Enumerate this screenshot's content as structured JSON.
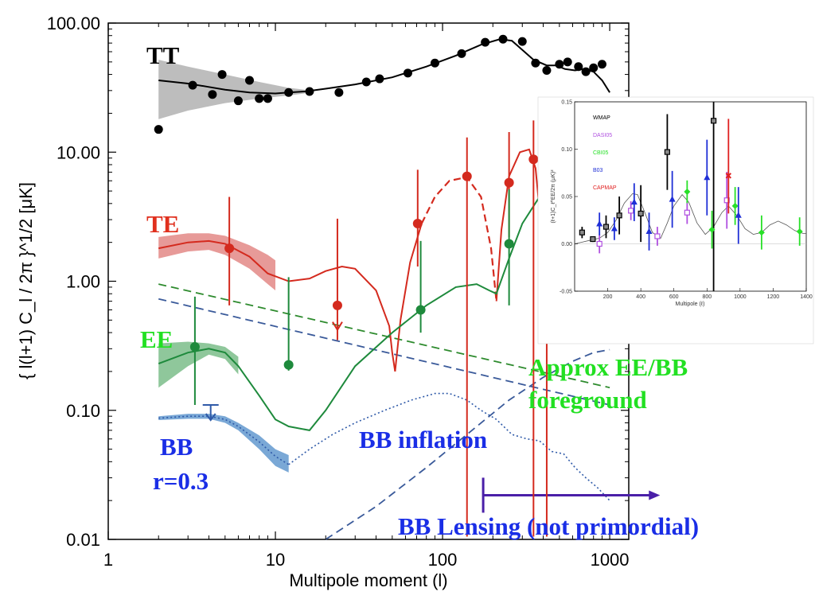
{
  "chart_data": [
    {
      "type": "line",
      "xlabel": "Multipole moment (l)",
      "ylabel": "{ l(l+1) C_l / 2π }^1/2  [μK]",
      "x_scale": "log",
      "y_scale": "log",
      "xlim": [
        1,
        1300
      ],
      "ylim": [
        0.01,
        100
      ],
      "x_ticks": [
        {
          "value": 1,
          "label": "1"
        },
        {
          "value": 10,
          "label": "10"
        },
        {
          "value": 100,
          "label": "100"
        },
        {
          "value": 1000,
          "label": "1000"
        }
      ],
      "y_ticks": [
        {
          "value": 0.01,
          "label": "0.01"
        },
        {
          "value": 0.1,
          "label": "0.10"
        },
        {
          "value": 1,
          "label": "1.00"
        },
        {
          "value": 10,
          "label": "10.00"
        },
        {
          "value": 100,
          "label": "100.00"
        }
      ],
      "series_labels": {
        "tt": "TT",
        "te": "TE",
        "ee": "EE",
        "bb_line1": "BB",
        "bb_line2": "r=0.3",
        "bb_inflation": "BB inflation",
        "foreground_line1": "Approx EE/BB",
        "foreground_line2": "foreground",
        "lensing": "BB Lensing (not primordial)"
      },
      "colors": {
        "tt": "#000000",
        "tt_band": "#bdbdbd",
        "te": "#d42a1e",
        "te_band": "#e79a98",
        "ee": "#1e8a3c",
        "ee_band": "#8fc79b",
        "bb": "#2f5aa8",
        "bb_band": "#7aa8d6",
        "foreground_ee": "#2e8b2e",
        "foreground_bb": "#3a5a9a",
        "label_te": "#e0301e",
        "label_ee": "#22e022",
        "label_bb": "#1a2ee6",
        "arrow": "#4a1fa8"
      },
      "series": [
        {
          "id": "tt_theory",
          "x": [
            2,
            3,
            4,
            5,
            7,
            10,
            12,
            15,
            20,
            30,
            50,
            80,
            120,
            170,
            220,
            260,
            300,
            350,
            420,
            480,
            540,
            620,
            700,
            800,
            900,
            1000
          ],
          "y": [
            36,
            34,
            32,
            30.5,
            29,
            28.5,
            29,
            29.5,
            31,
            33.5,
            38,
            46,
            56,
            68,
            75,
            73,
            62,
            52,
            47,
            47,
            44,
            43,
            44,
            42,
            36,
            29
          ]
        },
        {
          "id": "tt_band_upper",
          "x": [
            2,
            3,
            5,
            8,
            12,
            15
          ],
          "y": [
            52,
            46,
            40,
            35,
            31.5,
            30.5
          ]
        },
        {
          "id": "tt_band_lower",
          "x": [
            2,
            3,
            5,
            8,
            12,
            15
          ],
          "y": [
            18,
            21,
            24,
            26,
            27.5,
            28.5
          ]
        },
        {
          "id": "tt_data",
          "x": [
            2,
            3.2,
            4.2,
            4.8,
            6,
            7,
            8,
            9,
            12,
            16,
            24,
            35,
            42,
            62,
            90,
            130,
            180,
            230,
            300,
            360,
            420,
            500,
            560,
            650,
            720,
            800,
            900
          ],
          "y": [
            15,
            33,
            28,
            40,
            25,
            36,
            26,
            26,
            29,
            29.5,
            29,
            35,
            37,
            41,
            49,
            58,
            71,
            75,
            72,
            49,
            43,
            48,
            50,
            46,
            42,
            45,
            48
          ]
        },
        {
          "id": "te_theory",
          "x": [
            2,
            3,
            4,
            5,
            7,
            9,
            12,
            16,
            20,
            25,
            30,
            40,
            48,
            50,
            52
          ],
          "y": [
            1.8,
            2.0,
            2.05,
            1.95,
            1.55,
            1.15,
            1.0,
            1.05,
            1.2,
            1.3,
            1.25,
            0.85,
            0.45,
            0.28,
            0.2
          ]
        },
        {
          "id": "te_band_upper",
          "x": [
            2,
            3,
            4,
            5,
            7,
            9,
            10
          ],
          "y": [
            2.2,
            2.35,
            2.35,
            2.25,
            1.9,
            1.6,
            1.45
          ]
        },
        {
          "id": "te_band_lower",
          "x": [
            2,
            3,
            4,
            5,
            7,
            9,
            10
          ],
          "y": [
            1.5,
            1.7,
            1.75,
            1.6,
            1.25,
            0.95,
            0.85
          ]
        },
        {
          "id": "te_rise",
          "x": [
            52,
            56,
            64,
            75
          ],
          "y": [
            0.2,
            0.5,
            1.4,
            2.8
          ]
        },
        {
          "id": "te_dashed",
          "x": [
            75,
            90,
            110,
            140,
            170,
            195,
            210
          ],
          "y": [
            2.8,
            4.5,
            6.0,
            6.4,
            4.5,
            1.8,
            0.7
          ]
        },
        {
          "id": "te_peak",
          "x": [
            210,
            225,
            250,
            290,
            330,
            360,
            385,
            400,
            410
          ],
          "y": [
            0.7,
            2.5,
            6.5,
            10,
            10.5,
            7.5,
            3.0,
            1.0,
            0.6
          ]
        },
        {
          "id": "te_data",
          "x": [
            5.3,
            23.5,
            71,
            140,
            250,
            350,
            420
          ],
          "y": [
            1.8,
            0.65,
            2.8,
            6.5,
            5.8,
            8.8,
            8.0
          ],
          "yerr_low": [
            1.15,
            0.3,
            1.5,
            6.5,
            3.6,
            8.8,
            8.0
          ],
          "yerr_high": [
            2.7,
            2.4,
            4.5,
            6.5,
            8.5,
            8.8,
            8.0
          ]
        },
        {
          "id": "ee_theory",
          "x": [
            2,
            3,
            4,
            5,
            6,
            8,
            10,
            12,
            16,
            20,
            30,
            50,
            80,
            120,
            160,
            190,
            210,
            250,
            300,
            380,
            430
          ],
          "y": [
            0.23,
            0.28,
            0.3,
            0.28,
            0.22,
            0.13,
            0.085,
            0.075,
            0.07,
            0.1,
            0.22,
            0.4,
            0.65,
            0.9,
            0.95,
            0.85,
            0.8,
            1.5,
            2.8,
            4.5,
            4.5
          ]
        },
        {
          "id": "ee_band_upper",
          "x": [
            2,
            3,
            4,
            5,
            6
          ],
          "y": [
            0.33,
            0.34,
            0.33,
            0.31,
            0.26
          ]
        },
        {
          "id": "ee_band_lower",
          "x": [
            2,
            3,
            4,
            5,
            6
          ],
          "y": [
            0.15,
            0.22,
            0.27,
            0.25,
            0.19
          ]
        },
        {
          "id": "ee_data",
          "x": [
            3.3,
            12,
            74,
            250
          ],
          "y": [
            0.31,
            0.225,
            0.6,
            1.95
          ],
          "yerr_low": [
            0.2,
            0.022,
            0.2,
            1.3
          ],
          "yerr_high": [
            0.45,
            0.85,
            1.45,
            3.2
          ]
        },
        {
          "id": "bb_r03",
          "x": [
            2,
            3,
            4,
            5,
            6,
            8,
            10,
            12
          ],
          "y": [
            0.087,
            0.09,
            0.09,
            0.085,
            0.075,
            0.057,
            0.044,
            0.038
          ]
        },
        {
          "id": "bb_band_upper",
          "x": [
            2,
            3,
            4,
            5,
            6,
            8,
            10,
            12
          ],
          "y": [
            0.09,
            0.094,
            0.094,
            0.09,
            0.08,
            0.064,
            0.05,
            0.045
          ]
        },
        {
          "id": "bb_band_lower",
          "x": [
            2,
            3,
            4,
            5,
            6,
            8,
            10,
            12
          ],
          "y": [
            0.084,
            0.086,
            0.086,
            0.08,
            0.07,
            0.05,
            0.037,
            0.033
          ]
        },
        {
          "id": "bb_inflation",
          "x": [
            12,
            16,
            22,
            30,
            45,
            65,
            90,
            110,
            140,
            170,
            210,
            260,
            320,
            380,
            450,
            530,
            620,
            720,
            850,
            1000
          ],
          "y": [
            0.038,
            0.05,
            0.065,
            0.08,
            0.1,
            0.12,
            0.135,
            0.135,
            0.12,
            0.1,
            0.085,
            0.065,
            0.06,
            0.058,
            0.048,
            0.046,
            0.036,
            0.03,
            0.025,
            0.02
          ]
        },
        {
          "id": "bb_upper_limit",
          "x": [
            4.1
          ],
          "y": [
            0.11
          ]
        },
        {
          "id": "foreground_ee",
          "x": [
            2,
            1000
          ],
          "y": [
            0.95,
            0.15
          ]
        },
        {
          "id": "foreground_bb",
          "x": [
            2,
            1000
          ],
          "y": [
            0.73,
            0.11
          ]
        },
        {
          "id": "bb_lensing",
          "x": [
            20,
            40,
            80,
            150,
            250,
            400,
            600,
            800,
            1000
          ],
          "y": [
            0.01,
            0.018,
            0.036,
            0.07,
            0.12,
            0.18,
            0.24,
            0.28,
            0.295
          ]
        },
        {
          "id": "lensing_arrow",
          "x": [
            175,
            2000
          ],
          "y": [
            0.022,
            0.022
          ]
        }
      ]
    },
    {
      "type": "scatter",
      "xlabel": "Multipole (ℓ)",
      "ylabel": "(ℓ+1)C_ℓ^EE/2π  (μK)²",
      "xlim": [
        0,
        1400
      ],
      "ylim": [
        -0.05,
        0.15
      ],
      "x_ticks": [
        {
          "value": 200,
          "label": "200"
        },
        {
          "value": 400,
          "label": "400"
        },
        {
          "value": 600,
          "label": "600"
        },
        {
          "value": 800,
          "label": "800"
        },
        {
          "value": 1000,
          "label": "1000"
        },
        {
          "value": 1200,
          "label": "1200"
        },
        {
          "value": 1400,
          "label": "1400"
        }
      ],
      "y_ticks": [
        {
          "value": -0.05,
          "label": "-0.05"
        },
        {
          "value": 0,
          "label": "0.00"
        },
        {
          "value": 0.05,
          "label": "0.05"
        },
        {
          "value": 0.1,
          "label": "0.10"
        },
        {
          "value": 0.15,
          "label": "0.15"
        }
      ],
      "legend": [
        {
          "name": "WMAP",
          "color": "#000000"
        },
        {
          "name": "DASI05",
          "color": "#b050e0"
        },
        {
          "name": "CBI05",
          "color": "#28e028"
        },
        {
          "name": "B03",
          "color": "#1f2fd6"
        },
        {
          "name": "CAPMAP",
          "color": "#e02020"
        }
      ],
      "theory": {
        "x": [
          0,
          50,
          100,
          150,
          200,
          250,
          300,
          350,
          380,
          420,
          470,
          520,
          560,
          600,
          650,
          690,
          740,
          790,
          840,
          890,
          930,
          980,
          1030,
          1080,
          1130,
          1180,
          1230,
          1280,
          1330,
          1380,
          1400
        ],
        "y": [
          0.0,
          0.002,
          0.004,
          0.006,
          0.012,
          0.025,
          0.043,
          0.053,
          0.052,
          0.035,
          0.012,
          0.006,
          0.022,
          0.04,
          0.052,
          0.044,
          0.022,
          0.01,
          0.018,
          0.033,
          0.04,
          0.03,
          0.016,
          0.01,
          0.012,
          0.02,
          0.024,
          0.02,
          0.014,
          0.011,
          0.011
        ]
      },
      "series": [
        {
          "name": "WMAP",
          "marker": "square",
          "x": [
            45,
            110,
            190,
            270,
            400,
            560,
            840
          ],
          "y": [
            0.012,
            0.005,
            0.018,
            0.03,
            0.032,
            0.097,
            0.13
          ],
          "yerr_low": [
            0.006,
            0.003,
            0.012,
            0.02,
            0.03,
            0.04,
            0.18
          ],
          "yerr_high": [
            0.006,
            0.003,
            0.012,
            0.02,
            0.03,
            0.04,
            0.05
          ]
        },
        {
          "name": "DASI05",
          "marker": "square-open",
          "x": [
            150,
            340,
            500,
            680,
            920
          ],
          "y": [
            0.0,
            0.035,
            0.008,
            0.033,
            0.046
          ],
          "yerr_low": [
            0.01,
            0.01,
            0.01,
            0.012,
            0.03
          ],
          "yerr_high": [
            0.01,
            0.01,
            0.01,
            0.012,
            0.03
          ]
        },
        {
          "name": "CBI05",
          "marker": "diamond",
          "x": [
            680,
            830,
            970,
            1130,
            1360
          ],
          "y": [
            0.055,
            0.015,
            0.04,
            0.012,
            0.013
          ],
          "yerr_low": [
            0.012,
            0.02,
            0.02,
            0.018,
            0.015
          ],
          "yerr_high": [
            0.012,
            0.02,
            0.02,
            0.018,
            0.015
          ]
        },
        {
          "name": "B03",
          "marker": "triangle",
          "x": [
            150,
            240,
            360,
            450,
            590,
            800,
            990
          ],
          "y": [
            0.021,
            0.016,
            0.044,
            0.013,
            0.047,
            0.07,
            0.03
          ],
          "yerr_low": [
            0.012,
            0.012,
            0.02,
            0.02,
            0.03,
            0.04,
            0.03
          ],
          "yerr_high": [
            0.012,
            0.012,
            0.02,
            0.02,
            0.03,
            0.04,
            0.03
          ]
        },
        {
          "name": "CAPMAP",
          "marker": "x",
          "x": [
            930
          ],
          "y": [
            0.072
          ],
          "yerr_low": [
            0.04
          ],
          "yerr_high": [
            0.06
          ]
        }
      ]
    }
  ]
}
